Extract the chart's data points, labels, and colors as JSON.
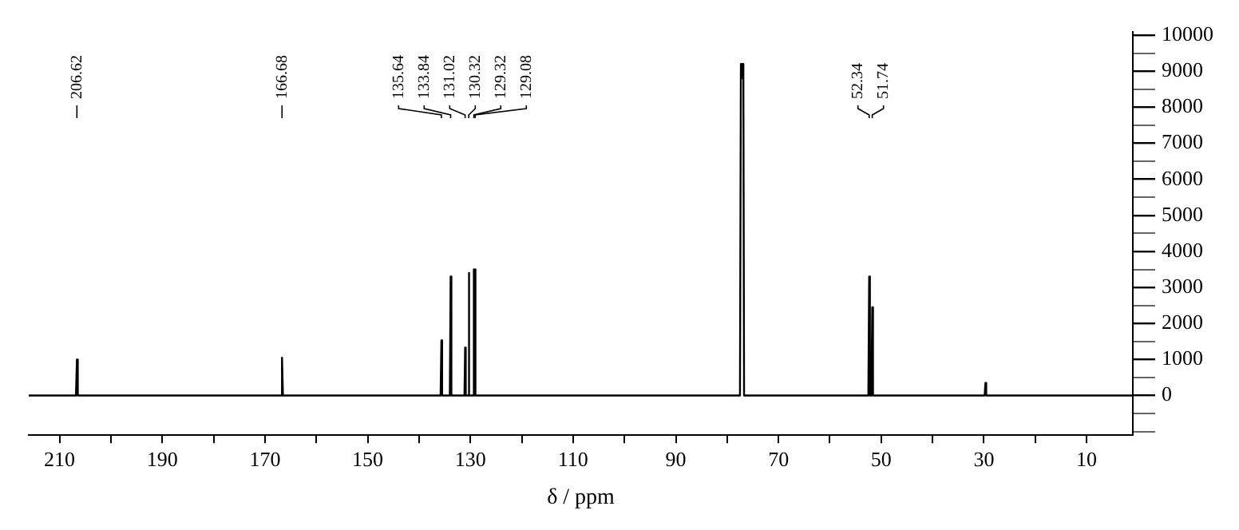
{
  "chart_data": {
    "type": "line",
    "xlabel": "δ / ppm",
    "xlim": [
      216,
      1
    ],
    "xticks": [
      210,
      {
        "value": 200,
        "label": null
      },
      190,
      {
        "value": 180,
        "label": null
      },
      170,
      {
        "value": 160,
        "label": null
      },
      150,
      {
        "value": 140,
        "label": null
      },
      130,
      {
        "value": 120,
        "label": null
      },
      110,
      {
        "value": 100,
        "label": null
      },
      90,
      {
        "value": 80,
        "label": null
      },
      70,
      {
        "value": 60,
        "label": null
      },
      50,
      {
        "value": 40,
        "label": null
      },
      30,
      {
        "value": 20,
        "label": null
      },
      10
    ],
    "ylim": [
      -1100,
      10100
    ],
    "yticks": [
      {
        "value": -1000,
        "label": null
      },
      {
        "value": -500,
        "label": null
      },
      0,
      {
        "value": 500,
        "label": null
      },
      1000,
      {
        "value": 1500,
        "label": null
      },
      2000,
      {
        "value": 2500,
        "label": null
      },
      3000,
      {
        "value": 3500,
        "label": null
      },
      4000,
      {
        "value": 4500,
        "label": null
      },
      5000,
      {
        "value": 5500,
        "label": null
      },
      6000,
      {
        "value": 6500,
        "label": null
      },
      7000,
      {
        "value": 7500,
        "label": null
      },
      8000,
      {
        "value": 8500,
        "label": null
      },
      9000,
      {
        "value": 9500,
        "label": null
      },
      10000
    ],
    "grid": false,
    "legend": false,
    "marker": "none",
    "line_style": "solid",
    "series": [
      {
        "color": "#000000",
        "x": [
          216,
          206.8,
          206.62,
          206.45,
          166.85,
          166.68,
          166.5,
          135.8,
          135.64,
          135.5,
          134.0,
          133.84,
          133.7,
          131.15,
          131.02,
          130.9,
          130.45,
          130.32,
          130.2,
          129.45,
          129.32,
          129.2,
          129.08,
          128.95,
          77.5,
          77.32,
          77.16,
          77.0,
          76.84,
          76.7,
          52.5,
          52.34,
          52.2,
          51.9,
          51.74,
          51.6,
          29.85,
          29.7,
          29.55,
          1
        ],
        "values": [
          0,
          0,
          1000,
          0,
          0,
          1050,
          0,
          0,
          1530,
          0,
          0,
          3300,
          0,
          0,
          1330,
          0,
          0,
          3400,
          0,
          0,
          3500,
          3450,
          3500,
          0,
          0,
          9200,
          8800,
          9200,
          8900,
          0,
          0,
          3300,
          0,
          0,
          2450,
          0,
          0,
          350,
          0,
          0
        ]
      }
    ],
    "annotations": [
      {
        "text": "206.62",
        "x": 206.62
      },
      {
        "text": "166.68",
        "x": 166.68
      },
      {
        "text": "135.64",
        "x": 135.64
      },
      {
        "text": "133.84",
        "x": 133.84
      },
      {
        "text": "131.02",
        "x": 131.02
      },
      {
        "text": "130.32",
        "x": 130.32
      },
      {
        "text": "129.32",
        "x": 129.32
      },
      {
        "text": "129.08",
        "x": 129.08
      },
      {
        "text": "52.34",
        "x": 52.34
      },
      {
        "text": "51.74",
        "x": 51.74
      }
    ]
  }
}
